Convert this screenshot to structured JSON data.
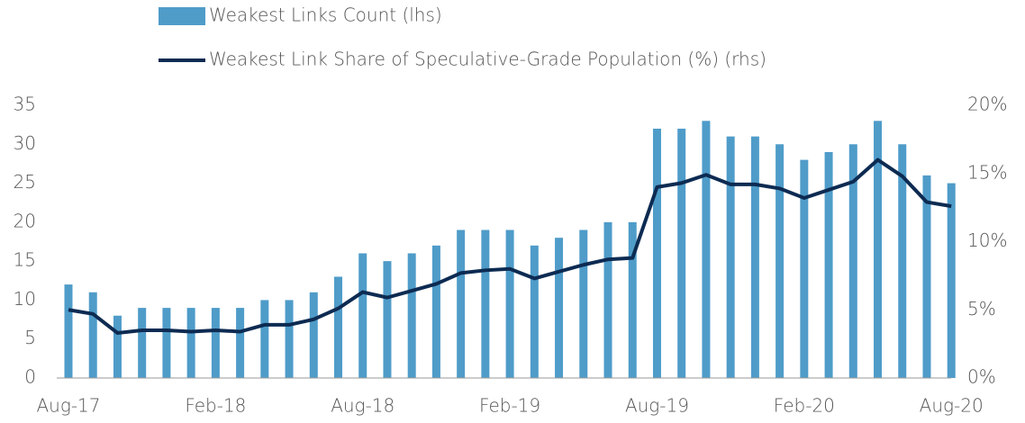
{
  "chart_data": {
    "type": "bar-line",
    "categories": [
      "Aug-17",
      null,
      null,
      null,
      null,
      null,
      "Feb-18",
      null,
      null,
      null,
      null,
      null,
      "Aug-18",
      null,
      null,
      null,
      null,
      null,
      "Feb-19",
      null,
      null,
      null,
      null,
      null,
      "Aug-19",
      null,
      null,
      null,
      null,
      null,
      "Feb-20",
      null,
      null,
      null,
      null,
      null,
      "Aug-20"
    ],
    "series": [
      {
        "name": "Weakest Links Count (lhs)",
        "type": "bar",
        "color": "#4f9cc9",
        "values": [
          12,
          11,
          8,
          9,
          9,
          9,
          9,
          9,
          10,
          10,
          11,
          13,
          16,
          15,
          16,
          17,
          19,
          19,
          19,
          17,
          18,
          19,
          20,
          20,
          32,
          32,
          33,
          31,
          31,
          30,
          28,
          29,
          30,
          33,
          30,
          26,
          25
        ]
      },
      {
        "name": "Weakest Link Share of Speculative-Grade Population (%) (rhs)",
        "type": "line",
        "axis": "y2",
        "color": "#0d2b52",
        "values": [
          5.0,
          4.7,
          3.3,
          3.5,
          3.5,
          3.4,
          3.5,
          3.4,
          3.9,
          3.9,
          4.3,
          5.1,
          6.3,
          5.9,
          6.4,
          6.9,
          7.7,
          7.9,
          8.0,
          7.3,
          7.8,
          8.3,
          8.7,
          8.8,
          14.0,
          14.3,
          14.9,
          14.2,
          14.2,
          13.9,
          13.2,
          13.8,
          14.4,
          16.0,
          14.8,
          12.9,
          12.6
        ]
      }
    ],
    "ylim": [
      0,
      35
    ],
    "yticks": [
      0,
      5,
      10,
      15,
      20,
      25,
      30,
      35
    ],
    "y2lim": [
      0,
      20
    ],
    "y2ticks": [
      {
        "value": 0,
        "label": "0%"
      },
      {
        "value": 5,
        "label": "5%"
      },
      {
        "value": 10,
        "label": "10%"
      },
      {
        "value": 15,
        "label": "15%"
      },
      {
        "value": 20,
        "label": "20%"
      }
    ],
    "legend": "top"
  }
}
